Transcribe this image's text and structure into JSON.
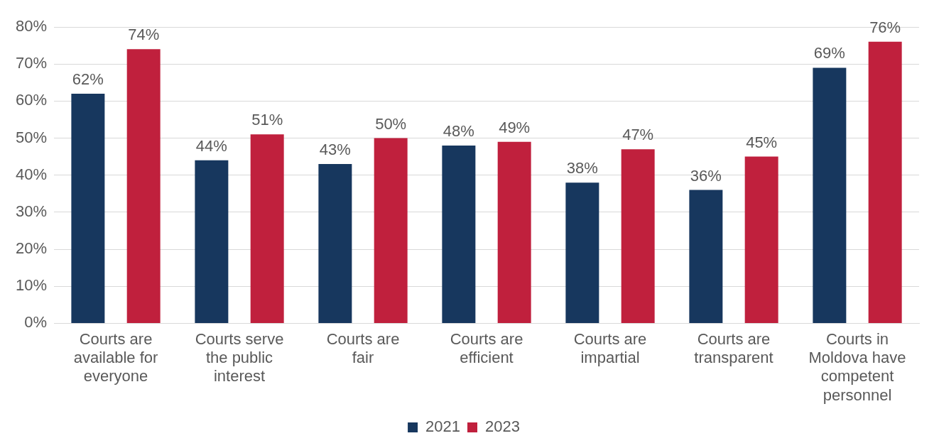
{
  "chart_data": {
    "type": "bar",
    "categories": [
      "Courts are available for everyone",
      "Courts serve the public interest",
      "Courts are fair",
      "Courts are efficient",
      "Courts are impartial",
      "Courts are transparent",
      "Courts in Moldova have competent personnel"
    ],
    "series": [
      {
        "name": "2021",
        "color": "#17375e",
        "values": [
          62,
          44,
          43,
          48,
          38,
          36,
          69
        ],
        "value_labels": [
          "62%",
          "44%",
          "43%",
          "48%",
          "38%",
          "36%",
          "69%"
        ]
      },
      {
        "name": "2023",
        "color": "#c0203d",
        "values": [
          74,
          51,
          50,
          49,
          47,
          45,
          76
        ],
        "value_labels": [
          "74%",
          "51%",
          "50%",
          "49%",
          "47%",
          "45%",
          "76%"
        ]
      }
    ],
    "ylim": [
      0,
      80
    ],
    "yticks": [
      {
        "value": 0,
        "label": "0%"
      },
      {
        "value": 10,
        "label": "10%"
      },
      {
        "value": 20,
        "label": "20%"
      },
      {
        "value": 30,
        "label": "30%"
      },
      {
        "value": 40,
        "label": "40%"
      },
      {
        "value": 50,
        "label": "50%"
      },
      {
        "value": 60,
        "label": "60%"
      },
      {
        "value": 70,
        "label": "70%"
      },
      {
        "value": 80,
        "label": "80%"
      }
    ],
    "grid": "y",
    "legend": "bottom"
  }
}
